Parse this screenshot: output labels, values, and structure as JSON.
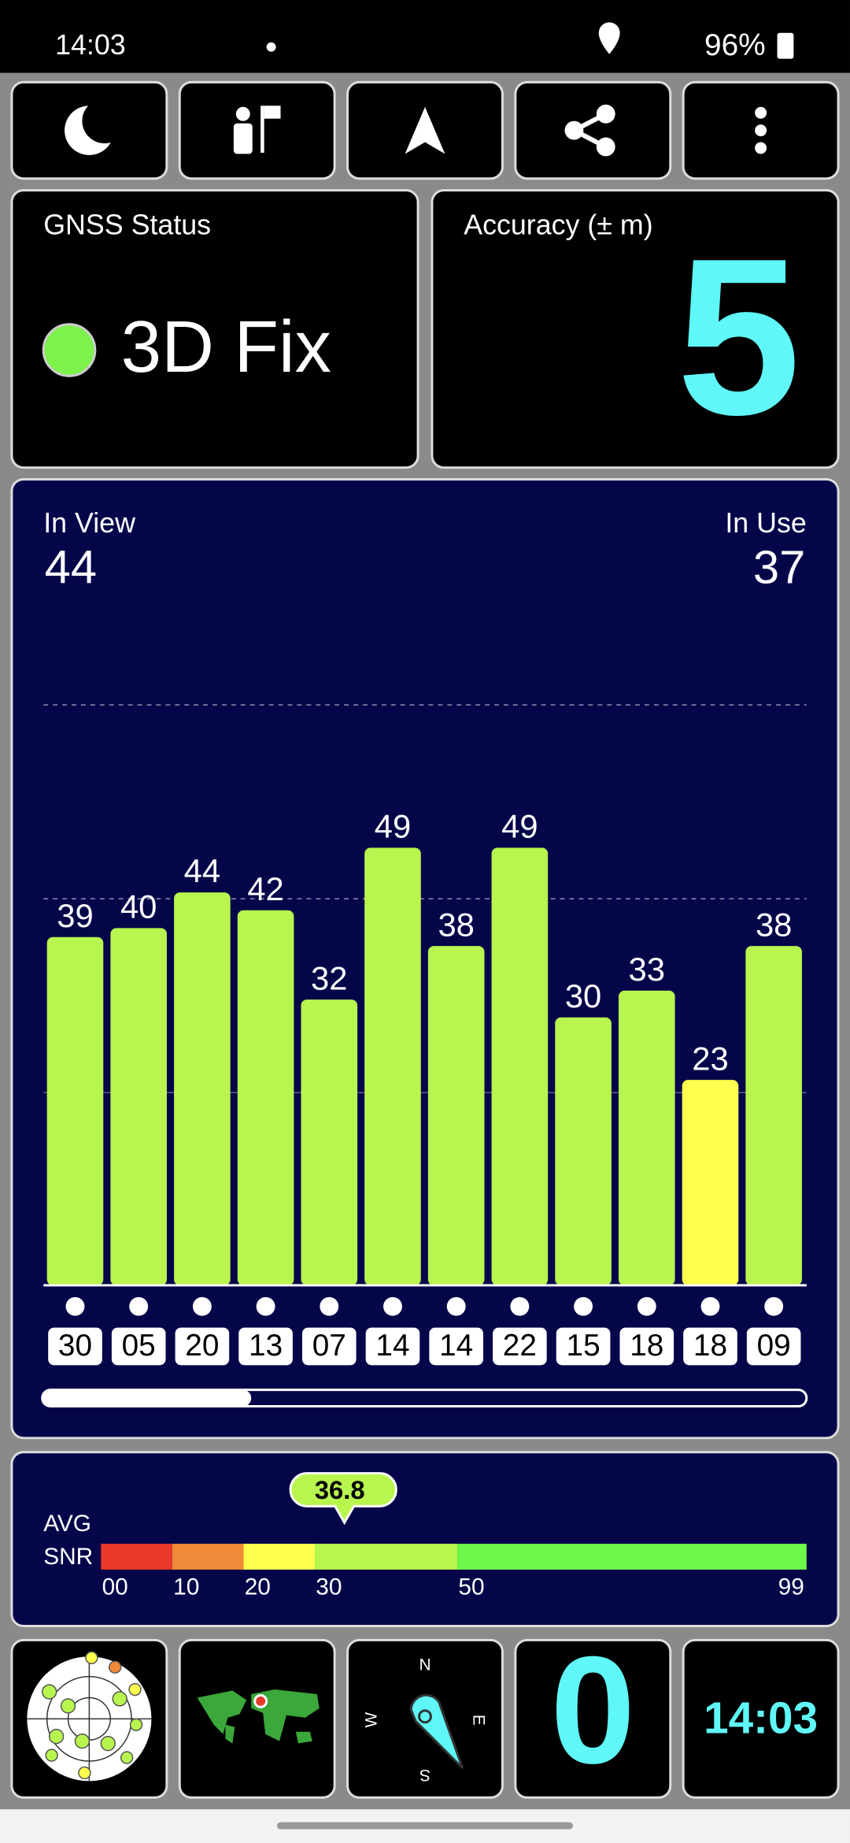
{
  "status_bar": {
    "time": "14:03",
    "battery": "96%"
  },
  "gnss_status": {
    "title": "GNSS Status",
    "fix": "3D Fix"
  },
  "accuracy": {
    "title": "Accuracy (± m)",
    "value": 5
  },
  "satellites": {
    "in_view_label": "In View",
    "in_view": 44,
    "in_use_label": "In Use",
    "in_use": 37,
    "signal_chart": {
      "type": "bar",
      "categories": [
        "30",
        "05",
        "20",
        "13",
        "07",
        "14",
        "14",
        "22",
        "15",
        "18",
        "18",
        "09"
      ],
      "values": [
        39,
        40,
        44,
        42,
        32,
        49,
        38,
        49,
        30,
        33,
        23,
        38
      ],
      "colors": [
        "#b8f54e",
        "#b8f54e",
        "#b8f54e",
        "#b8f54e",
        "#b8f54e",
        "#b8f54e",
        "#b8f54e",
        "#b8f54e",
        "#b8f54e",
        "#b8f54e",
        "#ffff4d",
        "#b8f54e"
      ]
    }
  },
  "snr": {
    "label_line1": "AVG",
    "label_line2": "SNR",
    "average": 36.8,
    "scale_ticks": [
      {
        "value": 0,
        "label": "00"
      },
      10,
      20,
      30,
      50,
      99
    ],
    "segment_colors": [
      "#e8392a",
      "#f08a38",
      "#ffff4d",
      "#b8f54e",
      "#6ef84a"
    ]
  },
  "compass": {
    "north": "N",
    "east": "E",
    "south": "S",
    "west": "W"
  },
  "tile_value": 0,
  "clock": "14:03"
}
